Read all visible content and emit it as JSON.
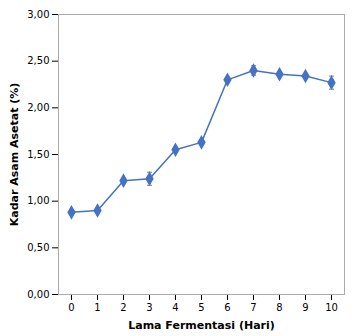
{
  "chart_data": {
    "type": "line",
    "xlabel": "Lama Fermentasi (Hari)",
    "ylabel": "Kadar Asam Asetat (%)",
    "x": [
      0,
      1,
      2,
      3,
      4,
      5,
      6,
      7,
      8,
      9,
      10
    ],
    "values": [
      0.88,
      0.9,
      1.22,
      1.24,
      1.55,
      1.63,
      2.3,
      2.4,
      2.36,
      2.34,
      2.27
    ],
    "yerr": [
      0.02,
      0.02,
      0.02,
      0.07,
      0.02,
      0.02,
      0.02,
      0.05,
      0.02,
      0.02,
      0.07
    ],
    "color": "#4472C4",
    "marker": "diamond",
    "xlim": [
      -0.5,
      10.5
    ],
    "xticks": [
      0,
      1,
      2,
      3,
      4,
      5,
      6,
      7,
      8,
      9,
      10
    ],
    "ylim": [
      0.0,
      3.0
    ],
    "yticks": [
      {
        "value": 0.0,
        "label": "0,00"
      },
      {
        "value": 0.5,
        "label": "0,50"
      },
      {
        "value": 1.0,
        "label": "1,00"
      },
      {
        "value": 1.5,
        "label": "1,50"
      },
      {
        "value": 2.0,
        "label": "2,00"
      },
      {
        "value": 2.5,
        "label": "2,50"
      },
      {
        "value": 3.0,
        "label": "3,00"
      }
    ],
    "grid": false
  }
}
